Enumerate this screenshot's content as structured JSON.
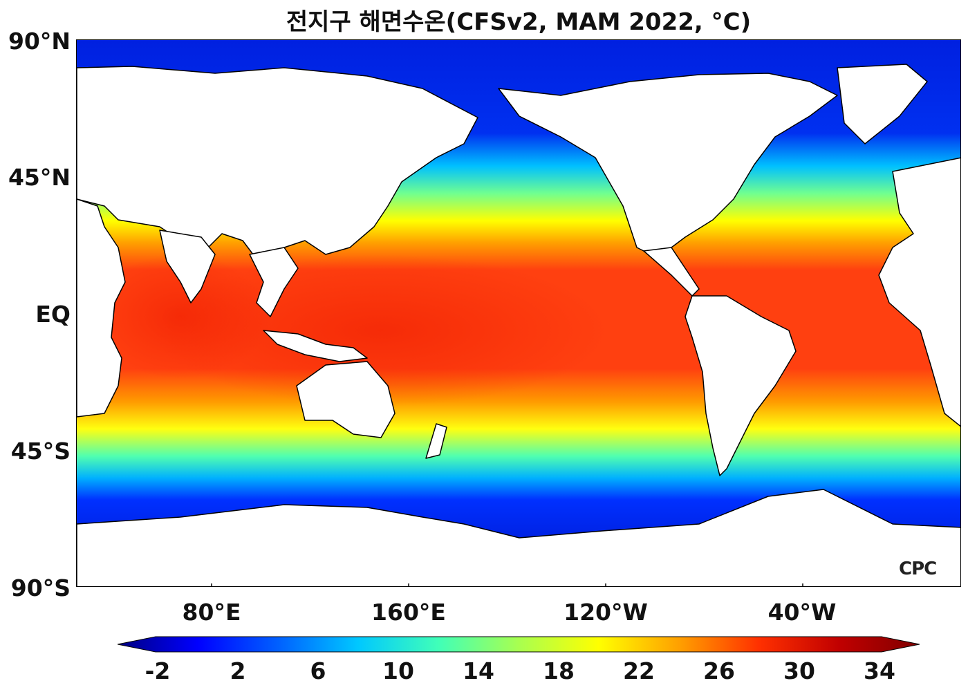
{
  "title": "전지구 해면수온(CFSv2, MAM 2022, °C)",
  "map": {
    "variable": "sea surface temperature",
    "y_axis_labels": [
      "90°N",
      "45°N",
      "EQ",
      "45°S",
      "90°S"
    ],
    "x_axis_labels": [
      "80°E",
      "160°E",
      "120°W",
      "40°W"
    ],
    "colors": {
      "land": "#ffffff",
      "coastline": "#000000",
      "warm_pool": "#ff3010",
      "cold_ocean": "#0010e0"
    }
  },
  "colorbar": {
    "labels": [
      "-2",
      "2",
      "6",
      "10",
      "14",
      "18",
      "22",
      "26",
      "30",
      "34"
    ],
    "stops": [
      "#000080",
      "#0000ff",
      "#0060ff",
      "#00c8ff",
      "#40ffb8",
      "#a8ff50",
      "#ffff00",
      "#ffa000",
      "#ff3000",
      "#c00000",
      "#800000"
    ]
  },
  "logo": "CPC"
}
